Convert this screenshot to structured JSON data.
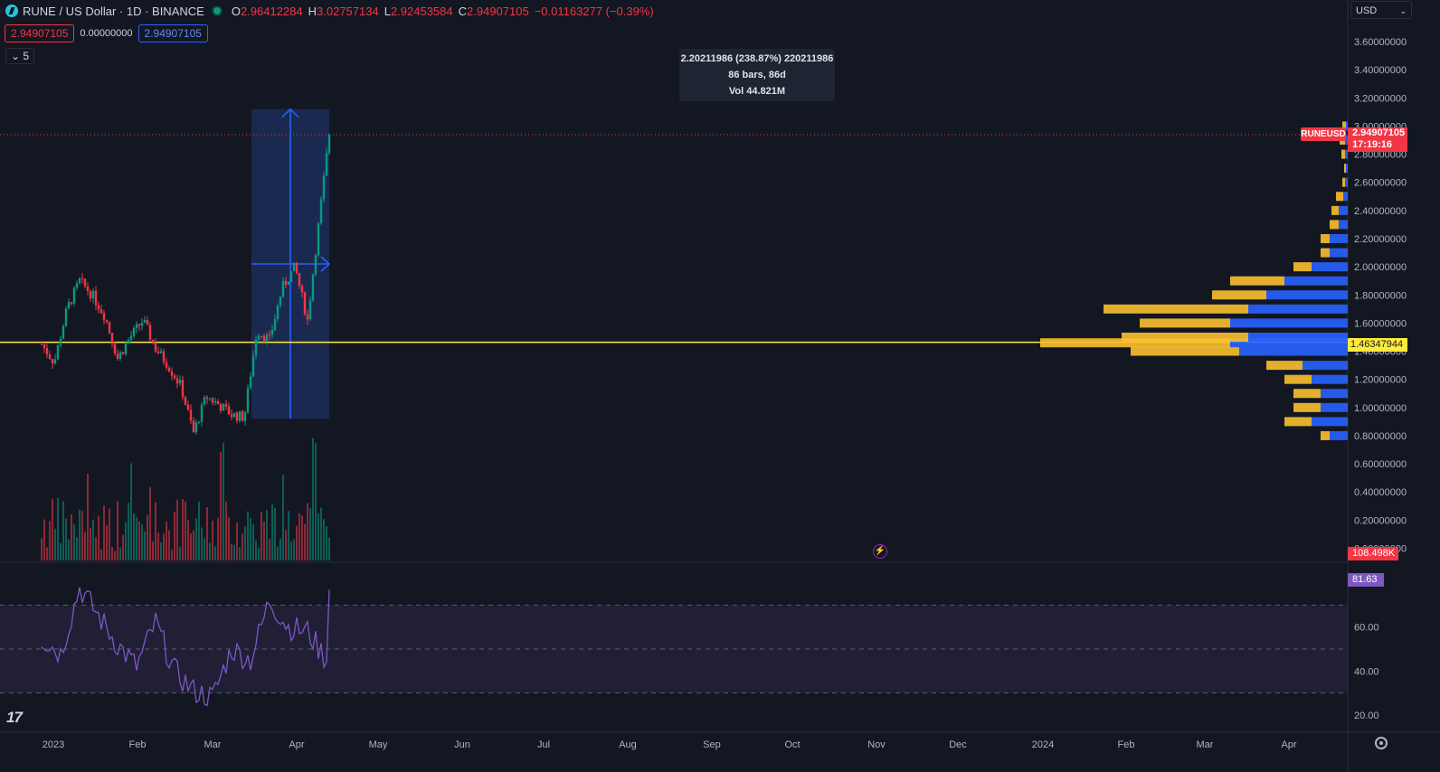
{
  "header": {
    "symbol": "RUNE / US Dollar · 1D · BINANCE",
    "o_label": "O",
    "o_value": "2.96412284",
    "h_label": "H",
    "h_value": "3.02757134",
    "l_label": "L",
    "l_value": "2.92453584",
    "c_label": "C",
    "c_value": "2.94907105",
    "change": "−0.01163277 (−0.39%)",
    "sell_price": "2.94907105",
    "spread": "0.00000000",
    "buy_price": "2.94907105",
    "indicators_toggle": "5"
  },
  "currency_select": "USD",
  "measure_tooltip": {
    "line1": "2.20211986 (238.87%) 220211986",
    "line2": "86 bars, 86d",
    "line3": "Vol 44.821M"
  },
  "price_labels": {
    "symbol_tag": "RUNEUSD",
    "last_price": "2.94907105",
    "countdown": "17:19:16",
    "hline_price": "1.46347944",
    "volume": "108.498K",
    "rsi": "81.63"
  },
  "colors": {
    "background": "#131722",
    "up": "#089981",
    "down": "#f23645",
    "hline": "#ffeb3b",
    "vp_blue": "#2962ff",
    "vp_yellow": "#fbc02d",
    "rsi_line": "#7e57c2",
    "measure_fill": "#1e3060",
    "measure_line": "#2962ff"
  },
  "icons": {
    "logo": "rune-logo-icon",
    "status": "market-open-dot-icon",
    "settings": "gear-icon",
    "alert": "lightning-icon",
    "brand": "tradingview-logo-icon"
  },
  "brand_text": "17",
  "chart_data": [
    {
      "type": "candlestick",
      "title": "RUNE / US Dollar · 1D · BINANCE",
      "x": [
        "2022-12-19",
        "2023-01-02",
        "2023-01-16",
        "2023-01-30",
        "2023-02-13",
        "2023-02-27",
        "2023-03-13",
        "2023-03-27",
        "2023-04-10",
        "2023-04-24",
        "2023-05-08",
        "2023-05-22",
        "2023-06-05",
        "2023-06-19",
        "2023-07-03",
        "2023-07-17",
        "2023-07-31",
        "2023-08-14",
        "2023-08-28",
        "2023-09-11",
        "2023-09-25",
        "2023-10-09",
        "2023-10-23",
        "2023-11-02"
      ],
      "y": [
        1.45,
        1.32,
        1.7,
        1.9,
        1.8,
        1.65,
        1.35,
        1.5,
        1.62,
        1.42,
        1.3,
        1.15,
        0.82,
        1.08,
        1.02,
        0.95,
        0.93,
        1.55,
        1.48,
        1.85,
        2.0,
        1.62,
        2.4,
        2.95
      ],
      "x_ticks": [
        "2023",
        "Feb",
        "Mar",
        "Apr",
        "May",
        "Jun",
        "Jul",
        "Aug",
        "Sep",
        "Oct",
        "Nov",
        "Dec",
        "2024",
        "Feb",
        "Mar",
        "Apr"
      ],
      "y_ticks": [
        "3.60000000",
        "3.40000000",
        "3.20000000",
        "3.00000000",
        "2.80000000",
        "2.60000000",
        "2.40000000",
        "2.20000000",
        "2.00000000",
        "1.80000000",
        "1.60000000",
        "1.40000000",
        "1.20000000",
        "1.00000000",
        "0.80000000",
        "0.60000000",
        "0.40000000",
        "0.20000000",
        "0.00000000"
      ],
      "ylim": [
        0,
        3.7
      ],
      "horizontal_line": 1.46347944,
      "measure": {
        "from_price": 0.92,
        "to_price": 3.12,
        "from_date": "2023-08-08",
        "to_date": "2023-11-02"
      },
      "volume_profile": {
        "levels": [
          0.8,
          0.9,
          1.0,
          1.1,
          1.2,
          1.3,
          1.4,
          1.46,
          1.5,
          1.6,
          1.7,
          1.8,
          1.9,
          2.0,
          2.1,
          2.2,
          2.3,
          2.4,
          2.5,
          2.6,
          2.7,
          2.8,
          2.9,
          3.0
        ],
        "up_volume": [
          2,
          4,
          3,
          3,
          4,
          5,
          12,
          13,
          11,
          13,
          11,
          9,
          7,
          4,
          2,
          2,
          1,
          1,
          0.5,
          0.3,
          0.2,
          0.3,
          0.3,
          0.2
        ],
        "down_volume": [
          1,
          3,
          3,
          3,
          3,
          4,
          12,
          21,
          14,
          10,
          16,
          6,
          6,
          2,
          1,
          1,
          1,
          0.8,
          0.8,
          0.3,
          0.2,
          0.4,
          0.6,
          0.4
        ]
      }
    },
    {
      "type": "bar",
      "title": "Volume",
      "last_value": "108.498K"
    },
    {
      "type": "line",
      "title": "RSI",
      "x": [
        "2022-12-19",
        "2023-01-09",
        "2023-01-30",
        "2023-02-20",
        "2023-03-13",
        "2023-04-03",
        "2023-04-24",
        "2023-05-15",
        "2023-06-05",
        "2023-06-26",
        "2023-07-17",
        "2023-08-07",
        "2023-08-28",
        "2023-09-18",
        "2023-10-09",
        "2023-10-30",
        "2023-11-02"
      ],
      "y": [
        55,
        48,
        78,
        65,
        52,
        42,
        62,
        40,
        31,
        28,
        50,
        45,
        72,
        60,
        58,
        45,
        81.63
      ],
      "y_ticks": [
        "60.00",
        "40.00",
        "20.00"
      ],
      "bands": [
        30,
        50,
        70
      ],
      "last_value": "81.63"
    }
  ]
}
